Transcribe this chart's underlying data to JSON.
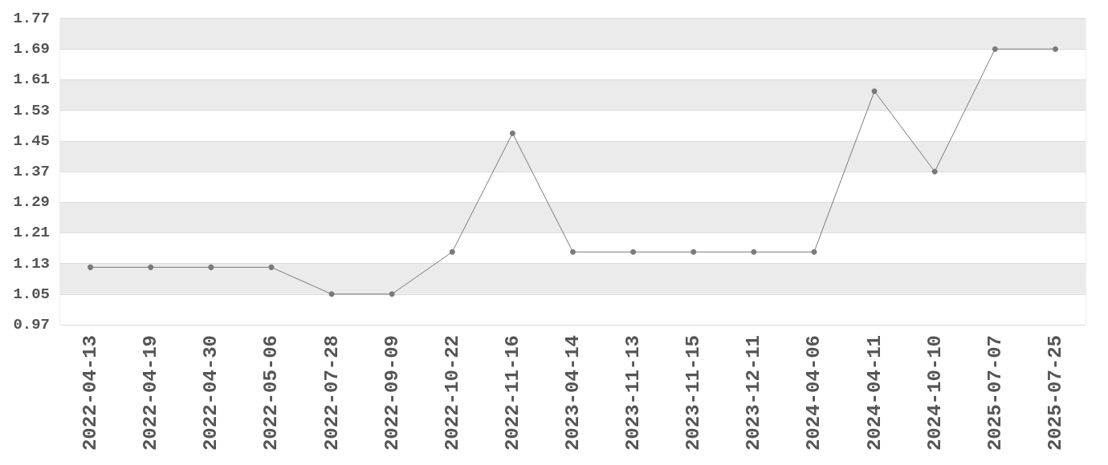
{
  "chart_data": {
    "type": "line",
    "categories": [
      "2022-04-13",
      "2022-04-19",
      "2022-04-30",
      "2022-05-06",
      "2022-07-28",
      "2022-09-09",
      "2022-10-22",
      "2022-11-16",
      "2023-04-14",
      "2023-11-13",
      "2023-11-15",
      "2023-12-11",
      "2024-04-06",
      "2024-04-11",
      "2024-10-10",
      "2025-07-07",
      "2025-07-25"
    ],
    "values": [
      1.12,
      1.12,
      1.12,
      1.12,
      1.05,
      1.05,
      1.16,
      1.47,
      1.16,
      1.16,
      1.16,
      1.16,
      1.16,
      1.58,
      1.37,
      1.69,
      1.69
    ],
    "color": "#7a7a7a",
    "ylim": [
      0.97,
      1.77
    ],
    "yticks": [
      0.97,
      1.05,
      1.13,
      1.21,
      1.29,
      1.37,
      1.45,
      1.53,
      1.61,
      1.69,
      1.77
    ],
    "grid": "y",
    "marker": "circle"
  }
}
